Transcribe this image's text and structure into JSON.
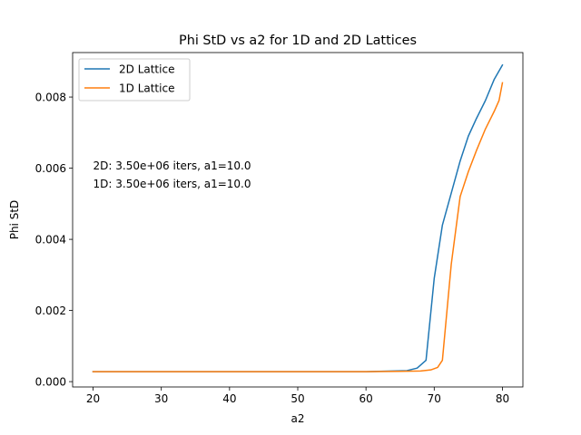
{
  "chart_data": {
    "type": "line",
    "title": "Phi StD vs a2 for 1D and 2D Lattices",
    "xlabel": "a2",
    "ylabel": "Phi StD",
    "xlim": [
      17.0,
      83.0
    ],
    "ylim": [
      -0.00015,
      0.00925
    ],
    "xticks": [
      20,
      30,
      40,
      50,
      60,
      70,
      80
    ],
    "xtick_labels": [
      "20",
      "30",
      "40",
      "50",
      "60",
      "70",
      "80"
    ],
    "yticks": [
      0.0,
      0.002,
      0.004,
      0.006,
      0.008
    ],
    "ytick_labels": [
      "0.000",
      "0.002",
      "0.004",
      "0.006",
      "0.008"
    ],
    "grid": false,
    "legend_position": "upper-left",
    "annotations": [
      "2D: 3.50e+06 iters, a1=10.0",
      "1D: 3.50e+06 iters, a1=10.0"
    ],
    "series": [
      {
        "name": "2D Lattice",
        "color": "#1f77b4",
        "x": [
          20,
          25,
          30,
          35,
          40,
          45,
          50,
          55,
          60,
          62,
          64,
          66,
          67.5,
          68.8,
          70.0,
          71.2,
          72.5,
          73.8,
          75.0,
          76.2,
          77.5,
          78.8,
          80.0
        ],
        "y": [
          0.00028,
          0.00028,
          0.00028,
          0.00028,
          0.00028,
          0.00028,
          0.00028,
          0.00028,
          0.00028,
          0.00029,
          0.0003,
          0.00031,
          0.00038,
          0.0006,
          0.0029,
          0.0044,
          0.0053,
          0.0062,
          0.0069,
          0.0074,
          0.0079,
          0.0085,
          0.0089
        ]
      },
      {
        "name": "1D Lattice",
        "color": "#ff7f0e",
        "x": [
          20,
          25,
          30,
          35,
          40,
          45,
          50,
          55,
          60,
          65,
          68,
          69.5,
          70.5,
          71.2,
          72.5,
          73.8,
          75.0,
          76.2,
          77.5,
          78.8,
          79.5,
          80.0
        ],
        "y": [
          0.00028,
          0.00028,
          0.00028,
          0.00028,
          0.00028,
          0.00028,
          0.00028,
          0.00028,
          0.00028,
          0.00029,
          0.0003,
          0.00033,
          0.0004,
          0.0006,
          0.0033,
          0.0052,
          0.0059,
          0.0065,
          0.0071,
          0.0076,
          0.0079,
          0.0084
        ]
      }
    ]
  }
}
